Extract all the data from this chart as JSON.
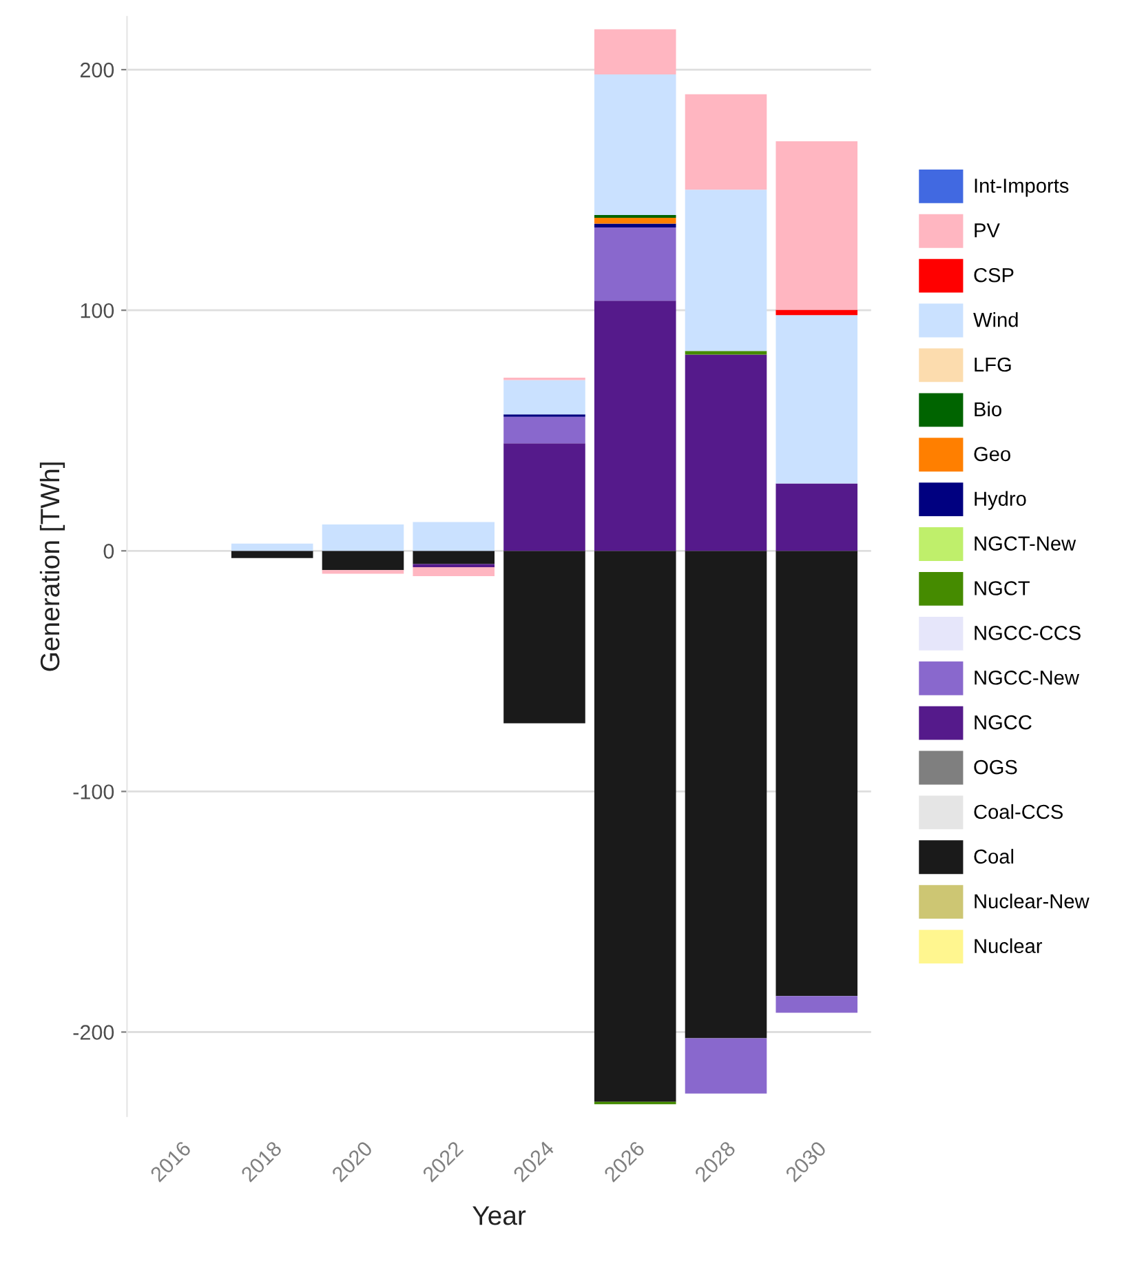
{
  "chart_data": {
    "type": "bar",
    "stacked": true,
    "xlabel": "Year",
    "ylabel": "Generation [TWh]",
    "categories": [
      "2016",
      "2018",
      "2020",
      "2022",
      "2024",
      "2026",
      "2028",
      "2030"
    ],
    "ylim": [
      -235,
      222
    ],
    "yticks": [
      -200,
      -100,
      0,
      100,
      200
    ],
    "grid": "y",
    "legend": "right",
    "series": [
      {
        "name": "Nuclear",
        "color": "#fff68f",
        "values": [
          null,
          null,
          null,
          null,
          null,
          null,
          null,
          null
        ]
      },
      {
        "name": "Nuclear-New",
        "color": "#cdc673",
        "values": [
          null,
          null,
          null,
          null,
          null,
          null,
          null,
          null
        ]
      },
      {
        "name": "Coal",
        "color": "#1a1a1a",
        "values": [
          null,
          -3,
          -8,
          -5.5,
          -71.7,
          -229,
          -202.6,
          -185
        ]
      },
      {
        "name": "Coal-CCS",
        "color": "#e5e5e5",
        "values": [
          null,
          null,
          null,
          null,
          null,
          null,
          null,
          null
        ]
      },
      {
        "name": "OGS",
        "color": "#7f7f7f",
        "values": [
          null,
          null,
          null,
          null,
          null,
          null,
          null,
          null
        ]
      },
      {
        "name": "NGCC",
        "color": "#551a8b",
        "values": [
          null,
          null,
          null,
          -1.3,
          44.7,
          104,
          81.6,
          28
        ]
      },
      {
        "name": "NGCC-New",
        "color": "#8968cd",
        "values": [
          null,
          null,
          null,
          null,
          11,
          30.4,
          -23,
          -7
        ]
      },
      {
        "name": "NGCC-CCS",
        "color": "#e6e6fa",
        "values": [
          null,
          null,
          null,
          null,
          null,
          null,
          null,
          null
        ]
      },
      {
        "name": "NGCT",
        "color": "#458b00",
        "values": [
          null,
          null,
          null,
          null,
          null,
          -1,
          1.5,
          null
        ]
      },
      {
        "name": "NGCT-New",
        "color": "#bfef6b",
        "values": [
          null,
          null,
          null,
          null,
          null,
          null,
          null,
          null
        ]
      },
      {
        "name": "Hydro",
        "color": "#000080",
        "values": [
          null,
          null,
          null,
          null,
          1,
          1.6,
          null,
          null
        ]
      },
      {
        "name": "Geo",
        "color": "#ff7f00",
        "values": [
          null,
          null,
          null,
          null,
          null,
          2.4,
          null,
          null
        ]
      },
      {
        "name": "Bio",
        "color": "#006400",
        "values": [
          null,
          null,
          null,
          null,
          null,
          1.2,
          null,
          null
        ]
      },
      {
        "name": "LFG",
        "color": "#fcdcae",
        "values": [
          null,
          null,
          null,
          null,
          null,
          null,
          null,
          null
        ]
      },
      {
        "name": "Wind",
        "color": "#cae1ff",
        "values": [
          null,
          3,
          11,
          12,
          14.3,
          58.4,
          67,
          70
        ]
      },
      {
        "name": "CSP",
        "color": "#ff0000",
        "values": [
          null,
          null,
          null,
          null,
          null,
          null,
          null,
          2.2
        ]
      },
      {
        "name": "PV",
        "color": "#ffb6c1",
        "values": [
          null,
          null,
          -1.5,
          -3.7,
          1,
          18.8,
          39.7,
          70
        ]
      },
      {
        "name": "Int-Imports",
        "color": "#4169e1",
        "values": [
          null,
          null,
          null,
          null,
          null,
          null,
          null,
          null
        ]
      }
    ]
  }
}
